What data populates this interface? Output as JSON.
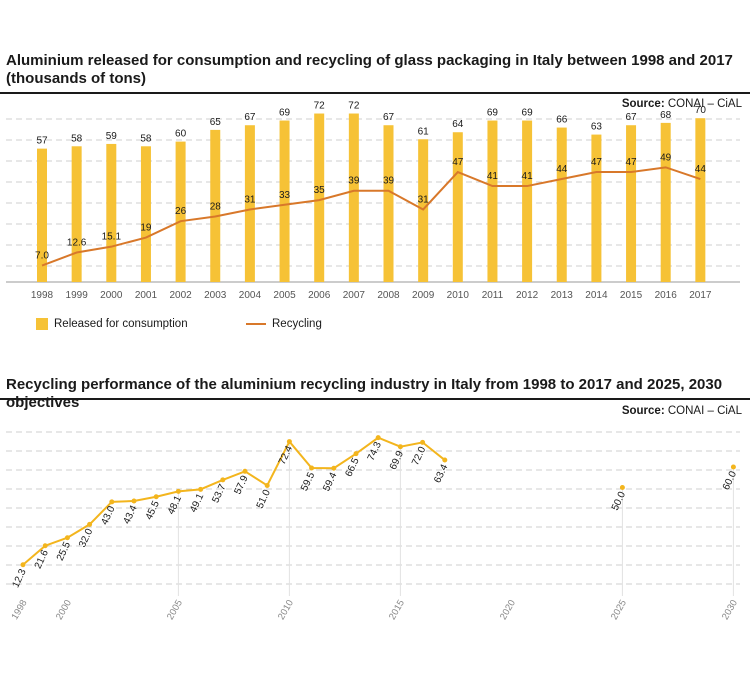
{
  "chart1": {
    "title": "Aluminium released for consumption and recycling of glass packaging in Italy between 1998 and 2017 (thousands of tons)",
    "source_label": "Source:",
    "source_value": "CONAI – CiAL",
    "legend_bar": "Released for consumption",
    "legend_line": "Recycling"
  },
  "chart2": {
    "title": "Recycling performance of the aluminium recycling industry in Italy from 1998 to 2017 and 2025, 2030 objectives",
    "source_label": "Source:",
    "source_value": "CONAI – CiAL"
  },
  "colors": {
    "bar": "#f6c236",
    "recycling_line": "#d8782a",
    "performance_line": "#f3b51d",
    "grid": "#cfcfcf"
  },
  "chart_data": [
    {
      "type": "bar",
      "categories": [
        "1998",
        "1999",
        "2000",
        "2001",
        "2002",
        "2003",
        "2004",
        "2005",
        "2006",
        "2007",
        "2008",
        "2009",
        "2010",
        "2011",
        "2012",
        "2013",
        "2014",
        "2015",
        "2016",
        "2017"
      ],
      "series": [
        {
          "name": "Released for consumption",
          "type": "bar",
          "values": [
            57,
            58,
            59,
            58,
            60,
            65,
            67,
            69,
            72,
            72,
            67,
            61,
            64,
            69,
            69,
            66,
            63,
            67,
            68,
            70
          ],
          "labels": [
            "57",
            "58",
            "59",
            "58",
            "60",
            "65",
            "67",
            "69",
            "72",
            "72",
            "67",
            "61",
            "64",
            "69",
            "69",
            "66",
            "63",
            "67",
            "68",
            "70"
          ]
        },
        {
          "name": "Recycling",
          "type": "line",
          "values": [
            7.0,
            12.6,
            15.1,
            19,
            26,
            28,
            31,
            33,
            35,
            39,
            39,
            31,
            47,
            41,
            41,
            44,
            47,
            47,
            49,
            44
          ],
          "labels": [
            "7.0",
            "12.6",
            "15.1",
            "19",
            "26",
            "28",
            "31",
            "33",
            "35",
            "39",
            "39",
            "31",
            "47",
            "41",
            "41",
            "44",
            "47",
            "47",
            "49",
            "44"
          ]
        }
      ],
      "ylim": [
        0,
        80
      ],
      "grid": true,
      "legend": "bottom-left"
    },
    {
      "type": "line",
      "x": [
        1998,
        1999,
        2000,
        2001,
        2002,
        2003,
        2004,
        2005,
        2006,
        2007,
        2008,
        2009,
        2010,
        2011,
        2012,
        2013,
        2014,
        2015,
        2016,
        2017
      ],
      "values": [
        12.3,
        21.6,
        25.5,
        32.0,
        43.0,
        43.4,
        45.5,
        48.1,
        49.1,
        53.7,
        57.9,
        51.0,
        72.4,
        59.5,
        59.4,
        66.5,
        74.3,
        69.9,
        72.0,
        63.4
      ],
      "labels": [
        "12.3",
        "21.6",
        "25.5",
        "32.0",
        "43.0",
        "43.4",
        "45.5",
        "48.1",
        "49.1",
        "53.7",
        "57.9",
        "51.0",
        "72.4",
        "59.5",
        "59.4",
        "66.5",
        "74.3",
        "69.9",
        "72.0",
        "63.4"
      ],
      "objectives": [
        {
          "x": 2025,
          "value": 50.0,
          "label": "50.0"
        },
        {
          "x": 2030,
          "value": 60.0,
          "label": "60.0"
        }
      ],
      "x_ticks": [
        "1998",
        "2000",
        "2005",
        "2010",
        "2015",
        "2020",
        "2025",
        "2030"
      ],
      "ylim": [
        0,
        80
      ],
      "grid": true
    }
  ]
}
